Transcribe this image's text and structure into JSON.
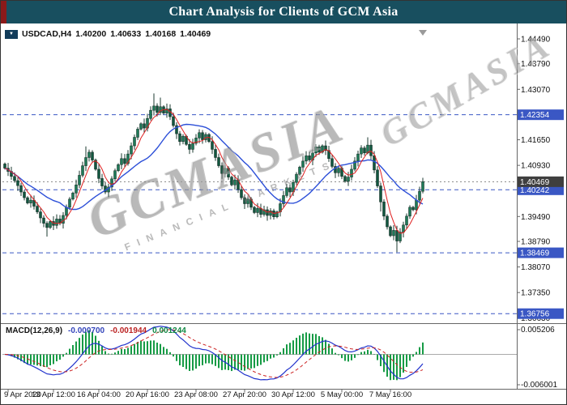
{
  "window": {
    "title": "Chart Analysis for Clients of GCM Asia"
  },
  "colors": {
    "titlebar_bg": "#184f5f",
    "titlebar_text": "#ffffff",
    "accent_red": "#8b1a1a",
    "level_line": "#3a57c4",
    "level_box": "#3a57c4",
    "current_box": "#3f3f3f",
    "candle_up": "#1e7a58",
    "candle_down": "#11573f",
    "wick": "#1c3b32",
    "ma_fast": "#e02020",
    "ma_slow": "#2c4fd8",
    "macd_line": "#2233cc",
    "macd_signal": "#cc2222",
    "macd_hist": "#169b45",
    "axis_text": "#111111",
    "separator": "#666666",
    "watermark": "#8a8a8a"
  },
  "watermark": {
    "text": "GCMASIA",
    "subtext": "FINANCIAL MARKETS"
  },
  "ohlc_bar": {
    "symbol": "USDCAD,H4",
    "open": "1.40200",
    "high": "1.40633",
    "low": "1.40168",
    "close": "1.40469"
  },
  "macd_panel": {
    "label": "MACD(12,26,9)",
    "macd_value": "-0.000700",
    "signal_value": "-0.001944",
    "hist_value": "0.001244",
    "axis_top": "0.005206",
    "axis_bottom": "-0.006001"
  },
  "chart_data": {
    "type": "candlestick",
    "symbol": "USDCAD",
    "timeframe": "H4",
    "y_range": {
      "max": 1.44809,
      "min": 1.3651
    },
    "price_axis_labels": [
      {
        "price": 1.4449,
        "text": "1.44490"
      },
      {
        "price": 1.4379,
        "text": "1.43790"
      },
      {
        "price": 1.4307,
        "text": "1.43070"
      },
      {
        "price": 1.4165,
        "text": "1.41650"
      },
      {
        "price": 1.4093,
        "text": "1.40930"
      },
      {
        "price": 1.3949,
        "text": "1.39490"
      },
      {
        "price": 1.3879,
        "text": "1.38790"
      },
      {
        "price": 1.3807,
        "text": "1.38070"
      },
      {
        "price": 1.3735,
        "text": "1.37350"
      },
      {
        "price": 1.3663,
        "text": "1.36630"
      }
    ],
    "levels": [
      {
        "price": 1.42354,
        "text": "1.42354"
      },
      {
        "price": 1.40242,
        "text": "1.40242"
      },
      {
        "price": 1.38469,
        "text": "1.38469"
      },
      {
        "price": 1.36756,
        "text": "1.36756"
      }
    ],
    "current_price": {
      "price": 1.40469,
      "text": "1.40469"
    },
    "x_axis": [
      {
        "index": 1,
        "text": "9 Apr 2020"
      },
      {
        "index": 15,
        "text": "13 Apr 12:00"
      },
      {
        "index": 29,
        "text": "16 Apr 04:00"
      },
      {
        "index": 44,
        "text": "20 Apr 16:00"
      },
      {
        "index": 59,
        "text": "23 Apr 08:00"
      },
      {
        "index": 74,
        "text": "27 Apr 20:00"
      },
      {
        "index": 89,
        "text": "30 Apr 12:00"
      },
      {
        "index": 104,
        "text": "5 May 00:00"
      },
      {
        "index": 119,
        "text": "7 May 16:00"
      }
    ],
    "closes": [
      1.4085,
      1.4076,
      1.4062,
      1.405,
      1.4036,
      1.4018,
      1.4002,
      1.3987,
      1.3995,
      1.3978,
      1.3962,
      1.3945,
      1.393,
      1.3918,
      1.3935,
      1.3924,
      1.3942,
      1.393,
      1.3952,
      1.3975,
      1.3998,
      1.4015,
      1.4038,
      1.4065,
      1.4092,
      1.4115,
      1.413,
      1.4108,
      1.4082,
      1.4056,
      1.4035,
      1.4018,
      1.4032,
      1.4055,
      1.4078,
      1.4095,
      1.4112,
      1.4098,
      1.4125,
      1.4148,
      1.4172,
      1.4195,
      1.421,
      1.4198,
      1.4225,
      1.4248,
      1.426,
      1.4242,
      1.4258,
      1.424,
      1.4252,
      1.423,
      1.4205,
      1.4182,
      1.416,
      1.4175,
      1.4152,
      1.4138,
      1.4155,
      1.417,
      1.4185,
      1.4165,
      1.418,
      1.416,
      1.4138,
      1.4115,
      1.4092,
      1.407,
      1.4085,
      1.406,
      1.4038,
      1.4052,
      1.4025,
      1.4002,
      1.3985,
      1.3998,
      1.3975,
      1.396,
      1.3972,
      1.3955,
      1.3968,
      1.3952,
      1.3965,
      1.3948,
      1.3962,
      1.3985,
      1.4008,
      1.403,
      1.4018,
      1.4045,
      1.4068,
      1.4088,
      1.4105,
      1.412,
      1.4108,
      1.4128,
      1.4145,
      1.413,
      1.4148,
      1.4135,
      1.4112,
      1.409,
      1.4072,
      1.4085,
      1.4062,
      1.4048,
      1.406,
      1.4082,
      1.4105,
      1.4125,
      1.4142,
      1.4128,
      1.415,
      1.412,
      1.408,
      1.4035,
      1.399,
      1.395,
      1.392,
      1.3895,
      1.391,
      1.388,
      1.3905,
      1.3925,
      1.395,
      1.3975,
      1.3968,
      1.3995,
      1.402,
      1.40469
    ],
    "wick_boosts": {
      "13": {
        "low": 0.0018
      },
      "25": {
        "high": 0.0022
      },
      "46": {
        "high": 0.0026
      },
      "48": {
        "high": 0.002
      },
      "112": {
        "high": 0.0018
      },
      "116": {
        "low": 0.0012
      },
      "121": {
        "low": 0.0022
      }
    },
    "indicators": {
      "ma_fast_period": 5,
      "ma_slow_period": 18,
      "macd": {
        "fast": 12,
        "slow": 26,
        "signal": 9,
        "axis_max": 0.005206,
        "axis_min": -0.006001
      }
    }
  }
}
